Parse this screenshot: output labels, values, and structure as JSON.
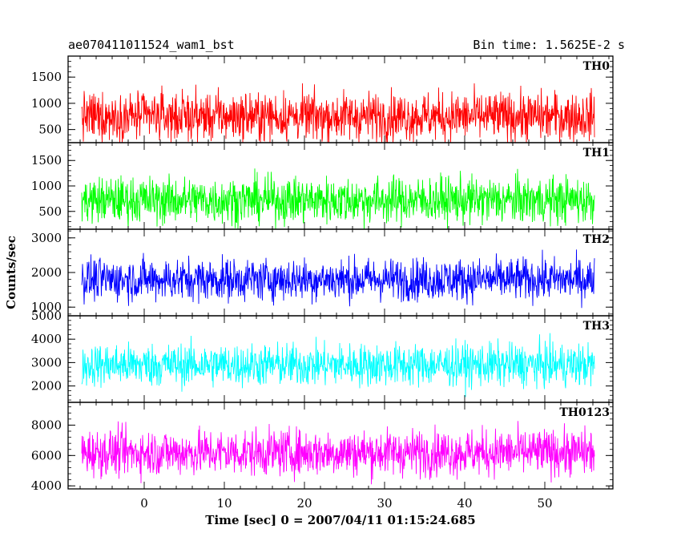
{
  "header": {
    "title": "ae070411011524_wam1_bst",
    "bin_time": "Bin time: 1.5625E-2 s"
  },
  "chart_data": {
    "type": "line",
    "xlabel": "Time [sec] 0 = 2007/04/11 01:15:24.685",
    "ylabel": "Counts/sec",
    "xlim": [
      -9.5,
      58.5
    ],
    "x_ticks": [
      0,
      10,
      20,
      30,
      40,
      50
    ],
    "data_x_range": [
      -7.8,
      56.2
    ],
    "bin_time": 0.015625,
    "grid": false,
    "legend": "none",
    "panels": [
      {
        "name": "TH0",
        "color": "#ff0000",
        "ylim": [
          250,
          1900
        ],
        "y_ticks": [
          500,
          1000,
          1500
        ],
        "mean": 750,
        "min_typical": 280,
        "max_typical": 1650,
        "sample_x": [
          -7.8,
          0,
          10,
          20,
          30,
          40,
          50,
          56.2
        ],
        "sample_y": [
          720,
          760,
          740,
          1300,
          780,
          750,
          800,
          740
        ]
      },
      {
        "name": "TH1",
        "color": "#00ff00",
        "ylim": [
          150,
          1850
        ],
        "y_ticks": [
          500,
          1000,
          1500
        ],
        "mean": 720,
        "min_typical": 250,
        "max_typical": 1600,
        "sample_x": [
          -7.8,
          0,
          10,
          20,
          30,
          40,
          50,
          56.2
        ],
        "sample_y": [
          700,
          740,
          720,
          760,
          700,
          730,
          750,
          710
        ]
      },
      {
        "name": "TH2",
        "color": "#0000ff",
        "ylim": [
          750,
          3250
        ],
        "y_ticks": [
          1000,
          2000,
          3000
        ],
        "mean": 1800,
        "min_typical": 1050,
        "max_typical": 2850,
        "sample_x": [
          -7.8,
          0,
          10,
          20,
          30,
          40,
          50,
          56.2
        ],
        "sample_y": [
          1800,
          1850,
          1820,
          1780,
          1840,
          1800,
          1830,
          1790
        ]
      },
      {
        "name": "TH3",
        "color": "#00ffff",
        "ylim": [
          1300,
          5000
        ],
        "y_ticks": [
          2000,
          3000,
          4000,
          5000
        ],
        "mean": 2900,
        "min_typical": 1700,
        "max_typical": 4400,
        "sample_x": [
          -7.8,
          0,
          10,
          20,
          30,
          40,
          50,
          56.2
        ],
        "sample_y": [
          2850,
          2950,
          2900,
          2920,
          2880,
          2900,
          2940,
          2870
        ]
      },
      {
        "name": "TH0123",
        "color": "#ff00ff",
        "ylim": [
          3800,
          9500
        ],
        "y_ticks": [
          4000,
          6000,
          8000
        ],
        "mean": 6200,
        "min_typical": 4300,
        "max_typical": 8800,
        "sample_x": [
          -7.8,
          0,
          10,
          20,
          30,
          40,
          50,
          56.2
        ],
        "sample_y": [
          6100,
          6300,
          6200,
          6500,
          6150,
          6250,
          6300,
          6100
        ]
      }
    ]
  }
}
